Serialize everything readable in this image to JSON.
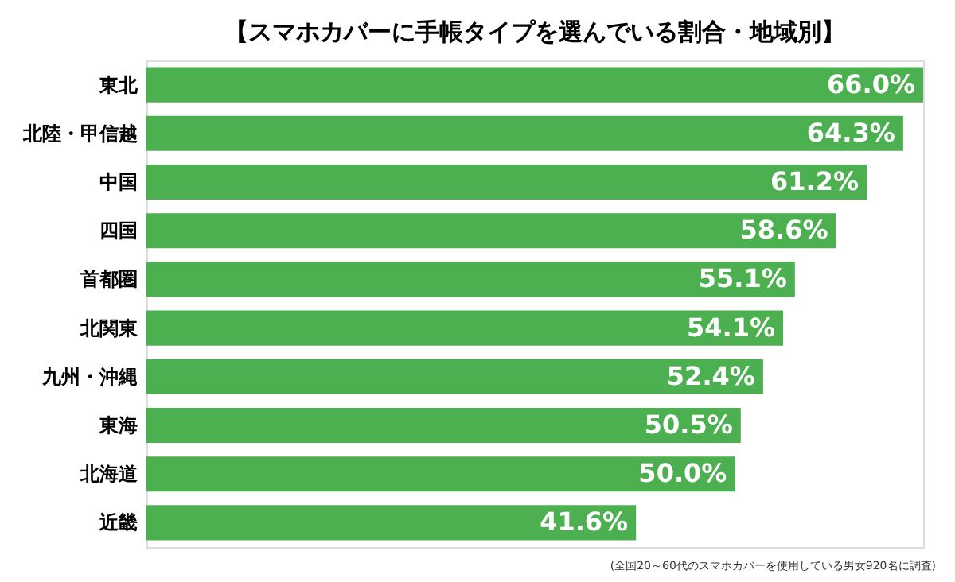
{
  "chart_data": {
    "type": "bar",
    "orientation": "horizontal",
    "title": "【スマホカバーに手帳タイプを選んでいる割合・地域別】",
    "categories": [
      "東北",
      "北陸・甲信越",
      "中国",
      "四国",
      "首都圏",
      "北関東",
      "九州・沖縄",
      "東海",
      "北海道",
      "近畿"
    ],
    "values": [
      66.0,
      64.3,
      61.2,
      58.6,
      55.1,
      54.1,
      52.4,
      50.5,
      50.0,
      41.6
    ],
    "value_labels": [
      "66.0%",
      "64.3%",
      "61.2%",
      "58.6%",
      "55.1%",
      "54.1%",
      "52.4%",
      "50.5%",
      "50.0%",
      "41.6%"
    ],
    "color": "#4caf50",
    "annotations": [
      "(全国20～60代のスマホカバーを使用している男女920名に調査)"
    ]
  }
}
